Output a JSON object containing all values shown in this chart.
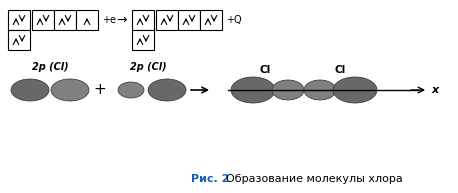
{
  "title_bold": "Рис. 2",
  "title_normal": "  Образование молекулы хлора",
  "label_2p_cl": "2p (Cl)",
  "label_cl": "Cl",
  "label_x": "x",
  "label_plus_e": "+e",
  "label_arrow": "→",
  "label_plus_q": "+Q",
  "label_plus": "+",
  "bg_color": "#ffffff",
  "box_color": "#000000",
  "orbital_color_dark": "#686868",
  "orbital_color_mid": "#808080",
  "orbital_color_light": "#a0a0a0",
  "text_color_title_bold": "#1a5fb4",
  "text_color_normal": "#000000"
}
